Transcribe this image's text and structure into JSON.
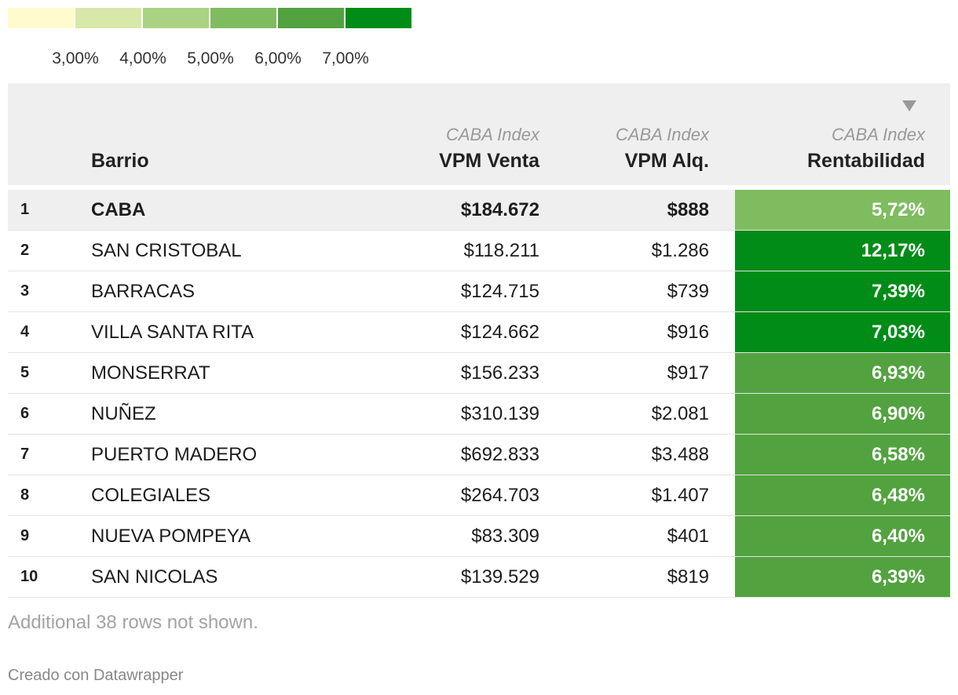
{
  "colors": {
    "scale": [
      "#fffbcc",
      "#d8e8a8",
      "#a9d282",
      "#7fbc5f",
      "#52a33f",
      "#008c17"
    ],
    "header_bg": "#efefef"
  },
  "legend": {
    "ticks": [
      "3,00%",
      "4,00%",
      "5,00%",
      "6,00%",
      "7,00%"
    ]
  },
  "header": {
    "barrio": "Barrio",
    "venta_sub": "CABA Index",
    "venta": "VPM Venta",
    "alq_sub": "CABA Index",
    "alq": "VPM Alq.",
    "rent_sub": "CABA Index",
    "rent": "Rentabilidad",
    "sort_icon": "sort-descending-icon"
  },
  "chart_data": {
    "type": "table",
    "columns": [
      "",
      "Barrio",
      "VPM Venta",
      "VPM Alq.",
      "Rentabilidad"
    ],
    "rows": [
      {
        "rank": "1",
        "barrio": "CABA",
        "venta": "$184.672",
        "alq": "$888",
        "rent": "5,72%",
        "rent_value": 5.72,
        "highlight": true
      },
      {
        "rank": "2",
        "barrio": "SAN CRISTOBAL",
        "venta": "$118.211",
        "alq": "$1.286",
        "rent": "12,17%",
        "rent_value": 12.17
      },
      {
        "rank": "3",
        "barrio": "BARRACAS",
        "venta": "$124.715",
        "alq": "$739",
        "rent": "7,39%",
        "rent_value": 7.39
      },
      {
        "rank": "4",
        "barrio": "VILLA SANTA RITA",
        "venta": "$124.662",
        "alq": "$916",
        "rent": "7,03%",
        "rent_value": 7.03
      },
      {
        "rank": "5",
        "barrio": "MONSERRAT",
        "venta": "$156.233",
        "alq": "$917",
        "rent": "6,93%",
        "rent_value": 6.93
      },
      {
        "rank": "6",
        "barrio": "NUÑEZ",
        "venta": "$310.139",
        "alq": "$2.081",
        "rent": "6,90%",
        "rent_value": 6.9
      },
      {
        "rank": "7",
        "barrio": "PUERTO MADERO",
        "venta": "$692.833",
        "alq": "$3.488",
        "rent": "6,58%",
        "rent_value": 6.58
      },
      {
        "rank": "8",
        "barrio": "COLEGIALES",
        "venta": "$264.703",
        "alq": "$1.407",
        "rent": "6,48%",
        "rent_value": 6.48
      },
      {
        "rank": "9",
        "barrio": "NUEVA POMPEYA",
        "venta": "$83.309",
        "alq": "$401",
        "rent": "6,40%",
        "rent_value": 6.4
      },
      {
        "rank": "10",
        "barrio": "SAN NICOLAS",
        "venta": "$139.529",
        "alq": "$819",
        "rent": "6,39%",
        "rent_value": 6.39
      }
    ],
    "color_breaks": [
      3,
      4,
      5,
      6,
      7
    ]
  },
  "footer": {
    "note": "Additional 38 rows not shown.",
    "credit": "Creado con Datawrapper"
  }
}
